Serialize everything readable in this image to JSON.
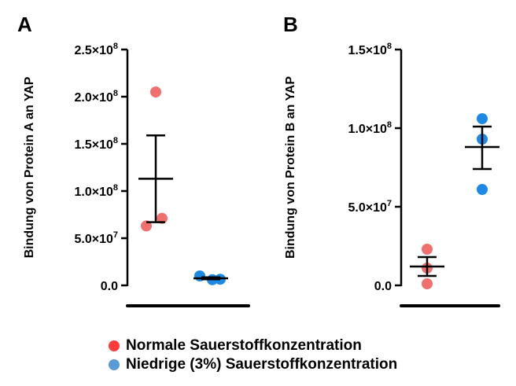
{
  "legend": {
    "items": [
      {
        "label": "Normale Sauerstoffkonzentration",
        "color": "#ff3b3b"
      },
      {
        "label": "Niedrige (3%) Sauerstoffkonzentration",
        "color": "#5b9bd5"
      }
    ]
  },
  "chart_data": [
    {
      "type": "scatter",
      "panel": "A",
      "ylabel": "Bindung von Protein A an YAP",
      "ylim": [
        0,
        250000000
      ],
      "yticks": [
        {
          "value": 0,
          "mantissa": "0.0",
          "exp": ""
        },
        {
          "value": 50000000,
          "mantissa": "5.0×10",
          "exp": "7"
        },
        {
          "value": 100000000,
          "mantissa": "1.0×10",
          "exp": "8"
        },
        {
          "value": 150000000,
          "mantissa": "1.5×10",
          "exp": "8"
        },
        {
          "value": 200000000,
          "mantissa": "2.0×10",
          "exp": "8"
        },
        {
          "value": 250000000,
          "mantissa": "2.5×10",
          "exp": "8"
        }
      ],
      "series": [
        {
          "color": "#f07070",
          "points": [
            205000000,
            71000000,
            63000000
          ],
          "mean": 113000000,
          "sem_upper": 159000000,
          "sem_lower": 67000000
        },
        {
          "color": "#1e88e5",
          "points": [
            10000000,
            6000000,
            6500000
          ],
          "mean": 7500000,
          "sem_upper": 8500000,
          "sem_lower": 6500000
        }
      ]
    },
    {
      "type": "scatter",
      "panel": "B",
      "ylabel": "Bindung von Protein B an YAP",
      "ylim": [
        0,
        150000000
      ],
      "yticks": [
        {
          "value": 0,
          "mantissa": "0.0",
          "exp": ""
        },
        {
          "value": 50000000,
          "mantissa": "5.0×10",
          "exp": "7"
        },
        {
          "value": 100000000,
          "mantissa": "1.0×10",
          "exp": "8"
        },
        {
          "value": 150000000,
          "mantissa": "1.5×10",
          "exp": "8"
        }
      ],
      "series": [
        {
          "color": "#f07070",
          "points": [
            23000000,
            11000000,
            1000000
          ],
          "mean": 12000000,
          "sem_upper": 18000000,
          "sem_lower": 6000000
        },
        {
          "color": "#1e88e5",
          "points": [
            106000000,
            93000000,
            61000000
          ],
          "mean": 88000000,
          "sem_upper": 101000000,
          "sem_lower": 74000000
        }
      ]
    }
  ]
}
